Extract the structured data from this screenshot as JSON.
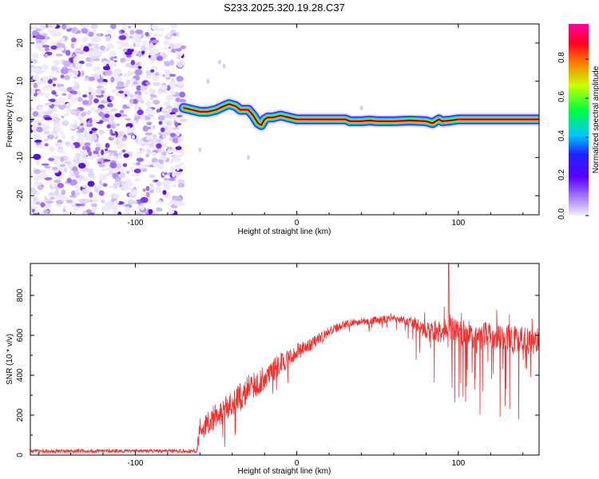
{
  "chart_data": [
    {
      "type": "heatmap",
      "title": "S233.2025.320.19.28.C37",
      "xlabel": "Height of straight line (km)",
      "ylabel": "Frequency (Hz)",
      "xlim": [
        -165,
        150
      ],
      "ylim": [
        -25,
        25
      ],
      "xticks": [
        -100,
        0,
        100
      ],
      "xtick_labels": [
        "-100",
        "0",
        "100"
      ],
      "yticks": [
        -20,
        -10,
        0,
        10,
        20
      ],
      "ytick_labels": [
        "-20",
        "-10",
        "0",
        "10",
        "20"
      ],
      "noise_region_x": [
        -165,
        -70
      ],
      "ridge": {
        "x": [
          -70,
          -65,
          -60,
          -55,
          -50,
          -45,
          -42,
          -38,
          -35,
          -30,
          -27,
          -24,
          -22,
          -20,
          -18,
          -15,
          -10,
          -5,
          0,
          5,
          10,
          20,
          30,
          33,
          40,
          45,
          50,
          55,
          60,
          70,
          80,
          84,
          86,
          88,
          90,
          95,
          100,
          110,
          120,
          130,
          140,
          150
        ],
        "y": [
          3,
          2.5,
          2,
          2,
          2.5,
          3.5,
          4,
          3.5,
          2.5,
          2.5,
          1,
          -1,
          -1.5,
          0,
          0.5,
          0.5,
          1,
          0.5,
          0,
          0,
          0,
          0,
          0,
          -0.5,
          -0.5,
          -0.3,
          -0.5,
          -0.5,
          -0.5,
          -0.3,
          -0.5,
          -1,
          -0.5,
          0,
          -0.5,
          -0.3,
          0,
          0,
          0,
          0,
          0,
          0
        ]
      },
      "colorbar": {
        "label": "Normalized spectral amplitude",
        "ticks": [
          0.0,
          0.2,
          0.4,
          0.6,
          0.8
        ],
        "tick_labels": [
          "0.0",
          "0.2",
          "0.4",
          "0.6",
          "0.8"
        ],
        "colors": [
          "#e0d8f0",
          "#a060ff",
          "#6010ff",
          "#2020ff",
          "#00c0ff",
          "#00ff60",
          "#c0ff00",
          "#ff8000",
          "#ff0020",
          "#ff00a0"
        ]
      }
    },
    {
      "type": "line",
      "xlabel": "Height of straight line (km)",
      "ylabel": "SNR (10 * v/v)",
      "xlim": [
        -165,
        150
      ],
      "ylim": [
        0,
        960
      ],
      "xticks": [
        -100,
        0,
        100
      ],
      "xtick_labels": [
        "-100",
        "0",
        "100"
      ],
      "yticks": [
        0,
        200,
        400,
        600,
        800
      ],
      "ytick_labels": [
        "0",
        "200",
        "400",
        "600",
        "800"
      ],
      "series": [
        {
          "name": "SNR",
          "color": "#ee3333",
          "envelope_x": [
            -165,
            -62,
            -60,
            -50,
            -40,
            -30,
            -20,
            -10,
            0,
            10,
            20,
            30,
            40,
            50,
            60,
            70,
            80,
            90,
            95,
            100,
            110,
            120,
            130,
            140,
            150
          ],
          "envelope_y": [
            20,
            20,
            130,
            200,
            250,
            330,
            390,
            460,
            520,
            560,
            620,
            660,
            670,
            675,
            690,
            680,
            650,
            640,
            660,
            640,
            630,
            620,
            610,
            600,
            600
          ],
          "noise_amp": [
            12,
            12,
            80,
            80,
            90,
            90,
            80,
            70,
            50,
            40,
            30,
            25,
            25,
            25,
            25,
            60,
            120,
            150,
            160,
            160,
            170,
            180,
            180,
            170,
            170
          ],
          "peak": {
            "x": 94,
            "y": 960
          }
        }
      ]
    }
  ]
}
